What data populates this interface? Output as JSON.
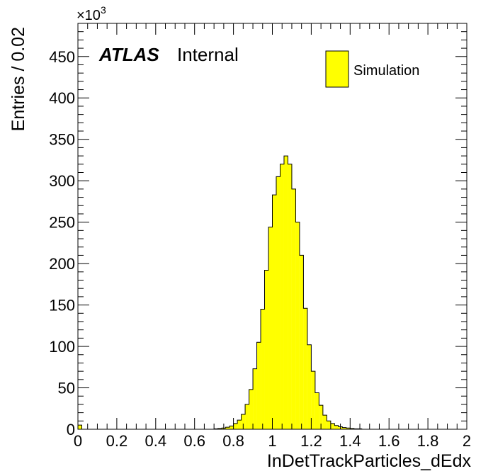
{
  "chart_data": {
    "type": "histogram",
    "title": "",
    "xlabel": "InDetTrackParticles_dEdx",
    "ylabel": "Entries / 0.02",
    "y_multiplier_label": "×10",
    "y_multiplier_exponent": "3",
    "xlim": [
      0,
      2
    ],
    "ylim": [
      0,
      490
    ],
    "x_ticks": [
      0,
      0.2,
      0.4,
      0.6,
      0.8,
      1,
      1.2,
      1.4,
      1.6,
      1.8,
      2
    ],
    "x_tick_labels": [
      "0",
      "0.2",
      "0.4",
      "0.6",
      "0.8",
      "1",
      "1.2",
      "1.4",
      "1.6",
      "1.8",
      "2"
    ],
    "y_ticks": [
      0,
      50,
      100,
      150,
      200,
      250,
      300,
      350,
      400,
      450
    ],
    "y_tick_labels": [
      "0",
      "50",
      "100",
      "150",
      "200",
      "250",
      "300",
      "350",
      "400",
      "450"
    ],
    "bin_width": 0.02,
    "bin_edges_start": 0,
    "series": [
      {
        "name": "Simulation",
        "fill_color": "#ffff00",
        "line_color": "#000000",
        "values": [
          5,
          0,
          0,
          0,
          0,
          0,
          0,
          0,
          0,
          0,
          0,
          0,
          0,
          0,
          0,
          0,
          0,
          0,
          0,
          0,
          0,
          0,
          0,
          0,
          0,
          0,
          0,
          0,
          0,
          0,
          0,
          0,
          0,
          0,
          0,
          0.5,
          1,
          1.5,
          2.5,
          4,
          7,
          11,
          18,
          30,
          48,
          73,
          105,
          145,
          192,
          244,
          283,
          305,
          320,
          330,
          320,
          290,
          250,
          210,
          146,
          102,
          70,
          44,
          29,
          17,
          10,
          7,
          4.5,
          3,
          2,
          1.5,
          1,
          0.5,
          0.5,
          0,
          0,
          0,
          0,
          0,
          0,
          0,
          0,
          0,
          0,
          0,
          0,
          0,
          0,
          0,
          0,
          0,
          0,
          0,
          0,
          0,
          0,
          0,
          0,
          0,
          0,
          0
        ]
      }
    ],
    "legend_position": "top-right"
  },
  "annotations": {
    "experiment": "ATLAS",
    "status": "Internal"
  },
  "legend": {
    "entries": [
      {
        "label": "Simulation",
        "color": "#ffff00"
      }
    ]
  }
}
